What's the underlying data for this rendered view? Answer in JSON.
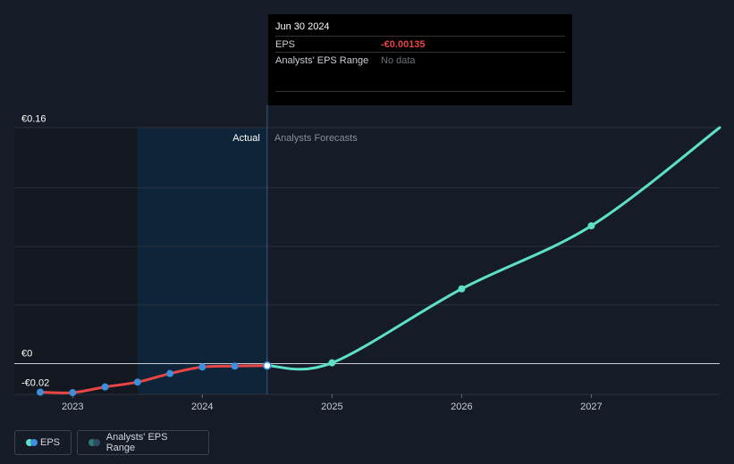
{
  "chart_data": {
    "type": "line",
    "y_ticks": [
      {
        "label": "€0.16",
        "value": 0.16
      },
      {
        "label": "€0",
        "value": 0
      },
      {
        "label": "-€0.02",
        "value": -0.02
      }
    ],
    "x_ticks": [
      {
        "label": "2023",
        "value": 2023.0
      },
      {
        "label": "2024",
        "value": 2024.0
      },
      {
        "label": "2025",
        "value": 2025.0
      },
      {
        "label": "2026",
        "value": 2026.0
      },
      {
        "label": "2027",
        "value": 2027.0
      }
    ],
    "xlim": [
      2022.55,
      2027.99
    ],
    "ylim": [
      -0.021,
      0.161
    ],
    "divider_x": 2024.5,
    "shade_start_x": 2023.5,
    "actual_label": "Actual",
    "forecast_label": "Analysts Forecasts",
    "series": [
      {
        "name": "EPS",
        "role": "actual",
        "color": "#e84545",
        "marker_color": "#3b8fdd",
        "points": [
          {
            "x": 2022.75,
            "y": -0.0195
          },
          {
            "x": 2023.0,
            "y": -0.0198
          },
          {
            "x": 2023.25,
            "y": -0.0159
          },
          {
            "x": 2023.5,
            "y": -0.0126
          },
          {
            "x": 2023.75,
            "y": -0.0068
          },
          {
            "x": 2024.0,
            "y": -0.0023
          },
          {
            "x": 2024.25,
            "y": -0.0017
          },
          {
            "x": 2024.5,
            "y": -0.00135
          }
        ]
      },
      {
        "name": "EPS",
        "role": "forecast",
        "color": "#5ee0c8",
        "marker_color": "#5ee0c8",
        "points": [
          {
            "x": 2024.5,
            "y": -0.00135
          },
          {
            "x": 2025.0,
            "y": 0.0005
          },
          {
            "x": 2026.0,
            "y": 0.051
          },
          {
            "x": 2027.0,
            "y": 0.094
          },
          {
            "x": 2027.99,
            "y": 0.161
          }
        ]
      }
    ]
  },
  "tooltip": {
    "date": "Jun 30 2024",
    "eps_label": "EPS",
    "eps_value": "-€0.00135",
    "range_label": "Analysts' EPS Range",
    "range_value": "No data"
  },
  "legend": {
    "eps_label": "EPS",
    "eps_colors": [
      "#5ee0c8",
      "#3b8fdd"
    ],
    "range_label": "Analysts' EPS Range",
    "range_colors": [
      "#2f7a74",
      "#2a4a66"
    ]
  }
}
